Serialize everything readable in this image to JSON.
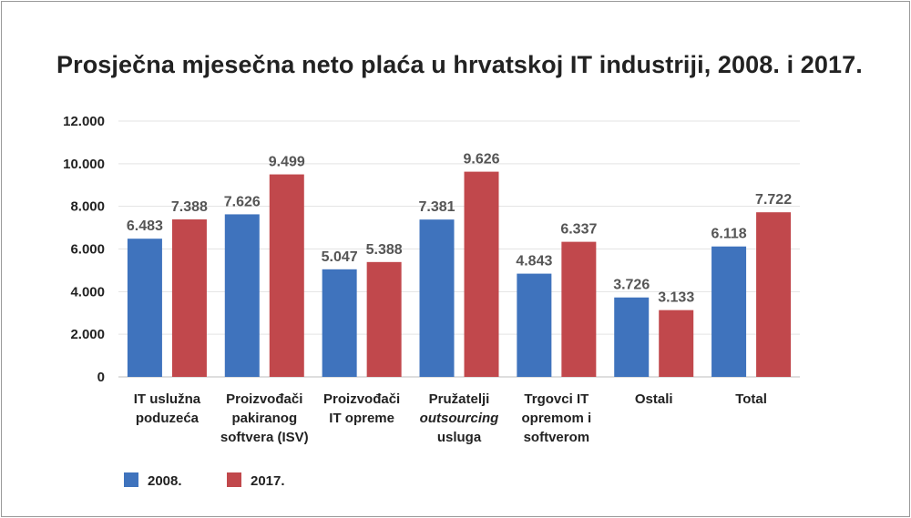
{
  "chart_data": {
    "type": "bar",
    "title": "Prosječna mjesečna neto plaća u hrvatskoj IT industriji, 2008. i 2017.",
    "xlabel": "",
    "ylabel": "",
    "ylim": [
      0,
      12000
    ],
    "yticks": [
      0,
      2000,
      4000,
      6000,
      8000,
      10000,
      12000
    ],
    "ytick_labels": [
      "0",
      "2.000",
      "4.000",
      "6.000",
      "8.000",
      "10.000",
      "12.000"
    ],
    "grid": true,
    "legend_position": "bottom-left",
    "categories": [
      {
        "lines": [
          "IT uslužna",
          "poduzeća"
        ]
      },
      {
        "lines": [
          "Proizvođači",
          "pakiranog",
          "softvera (ISV)"
        ]
      },
      {
        "lines": [
          "Proizvođači",
          "IT opreme"
        ]
      },
      {
        "lines": [
          "Pružatelji",
          "outsourcing",
          "usluga"
        ],
        "italic_line": 1
      },
      {
        "lines": [
          "Trgovci IT",
          "opremom i",
          "softverom"
        ]
      },
      {
        "lines": [
          "Ostali"
        ]
      },
      {
        "lines": [
          "Total"
        ]
      }
    ],
    "series": [
      {
        "name": "2008.",
        "color": "#3f73bd",
        "values": [
          6483,
          7626,
          5047,
          7381,
          4843,
          3726,
          6118
        ],
        "labels": [
          "6.483",
          "7.626",
          "5.047",
          "7.381",
          "4.843",
          "3.726",
          "6.118"
        ]
      },
      {
        "name": "2017.",
        "color": "#c1484c",
        "values": [
          7388,
          9499,
          5388,
          9626,
          6337,
          3133,
          7722
        ],
        "labels": [
          "7.388",
          "9.499",
          "5.388",
          "9.626",
          "6.337",
          "3.133",
          "7.722"
        ]
      }
    ]
  }
}
